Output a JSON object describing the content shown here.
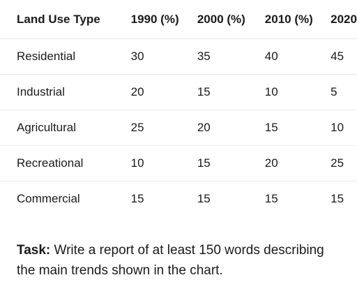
{
  "table": {
    "headers": [
      "Land Use Type",
      "1990 (%)",
      "2000 (%)",
      "2010 (%)",
      "2020"
    ],
    "rows": [
      [
        "Residential",
        "30",
        "35",
        "40",
        "45"
      ],
      [
        "Industrial",
        "20",
        "15",
        "10",
        "5"
      ],
      [
        "Agricultural",
        "25",
        "20",
        "15",
        "10"
      ],
      [
        "Recreational",
        "10",
        "15",
        "20",
        "25"
      ],
      [
        "Commercial",
        "15",
        "15",
        "15",
        "15"
      ]
    ]
  },
  "task": {
    "label": "Task:",
    "text": " Write a report of at least 150 words describing the main trends shown in the chart."
  }
}
